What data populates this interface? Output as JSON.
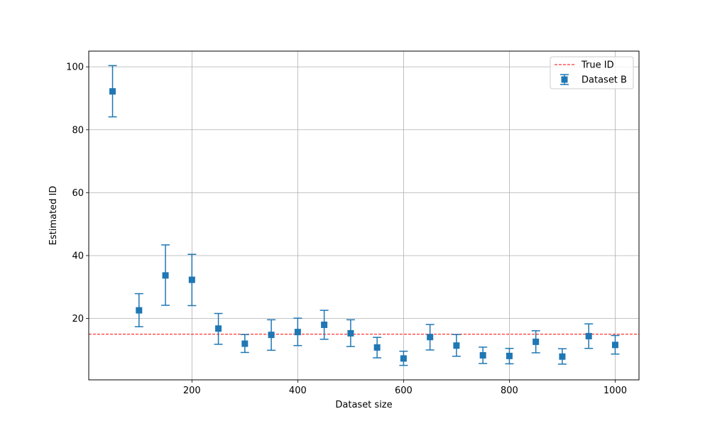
{
  "chart_data": {
    "type": "scatter",
    "title": "",
    "xlabel": "Dataset size",
    "ylabel": "Estimated ID",
    "xlim": [
      5,
      1045
    ],
    "ylim": [
      0.5,
      105
    ],
    "xticks": [
      200,
      400,
      600,
      800,
      1000
    ],
    "yticks": [
      20,
      40,
      60,
      80,
      100
    ],
    "grid": true,
    "legend_position": "top-right",
    "reference_line": {
      "name": "True ID",
      "y": 15,
      "color": "#ff0000",
      "style": "dashed"
    },
    "series": [
      {
        "name": "Dataset B",
        "color": "#1f77b4",
        "marker": "square",
        "x": [
          50,
          100,
          150,
          200,
          250,
          300,
          350,
          400,
          450,
          500,
          550,
          600,
          650,
          700,
          750,
          800,
          850,
          900,
          950,
          1000
        ],
        "y": [
          92.2,
          22.6,
          33.7,
          32.3,
          16.8,
          12.0,
          14.8,
          15.7,
          18.0,
          15.3,
          10.8,
          7.3,
          14.1,
          11.4,
          8.3,
          8.1,
          12.6,
          7.9,
          14.4,
          11.6
        ],
        "y_low": [
          84.1,
          17.4,
          24.2,
          24.1,
          11.8,
          9.2,
          9.9,
          11.4,
          13.4,
          11.1,
          7.5,
          5.1,
          10.0,
          8.0,
          5.7,
          5.6,
          9.1,
          5.5,
          10.5,
          8.7
        ],
        "y_high": [
          100.4,
          27.9,
          43.4,
          40.4,
          21.6,
          14.9,
          19.6,
          20.1,
          22.6,
          19.6,
          14.0,
          9.6,
          18.1,
          14.9,
          10.9,
          10.5,
          16.1,
          10.4,
          18.3,
          14.6
        ]
      }
    ]
  }
}
